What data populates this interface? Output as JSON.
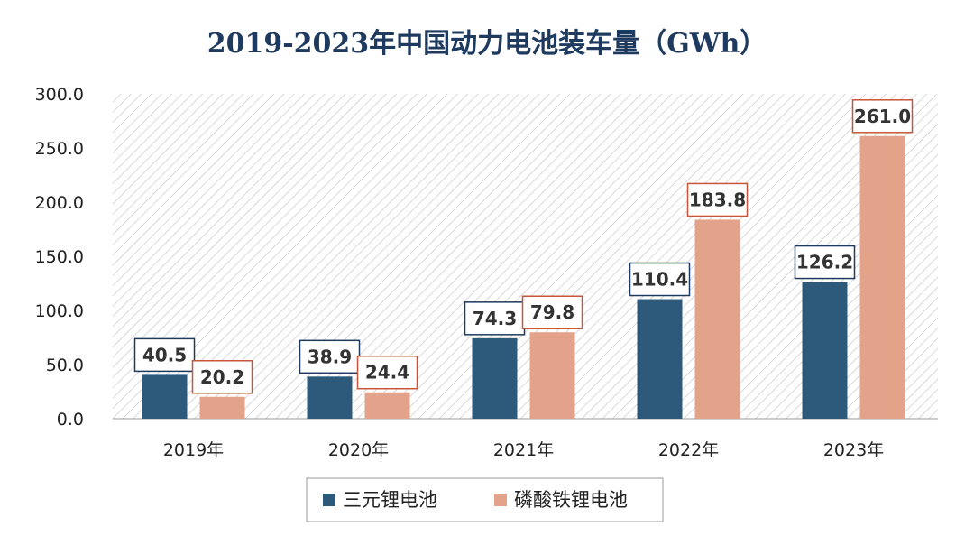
{
  "chart_data": {
    "type": "bar",
    "title": "2019-2023年中国动力电池装车量（GWh）",
    "categories": [
      "2019年",
      "2020年",
      "2021年",
      "2022年",
      "2023年"
    ],
    "series": [
      {
        "name": "三元锂电池",
        "values": [
          40.5,
          38.9,
          74.3,
          110.4,
          126.2
        ],
        "color": "#2d5a7b",
        "label_border": "#1f3a5f"
      },
      {
        "name": "磷酸铁锂电池",
        "values": [
          20.2,
          24.4,
          79.8,
          183.8,
          261.0
        ],
        "color": "#e3a38a",
        "label_border": "#c8553a"
      }
    ],
    "ylim": [
      0,
      300
    ],
    "yticks": [
      "0.0",
      "50.0",
      "100.0",
      "150.0",
      "200.0",
      "250.0",
      "300.0"
    ],
    "grid": false,
    "background_pattern": "diagonal-hatch",
    "legend_position": "bottom",
    "xlabel": "",
    "ylabel": ""
  }
}
